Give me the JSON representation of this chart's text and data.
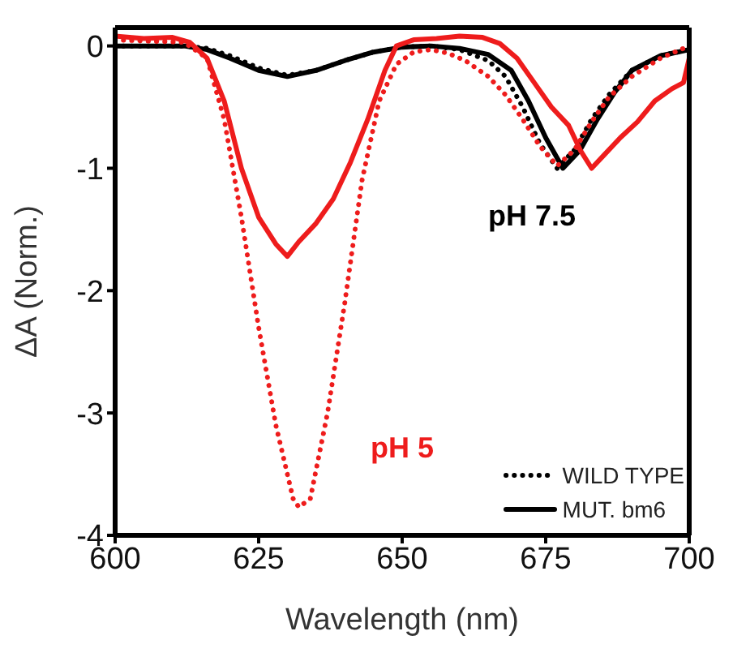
{
  "chart_data": {
    "type": "line",
    "xlabel": "Wavelength (nm)",
    "ylabel": "ΔA (Norm.)",
    "xlim": [
      600,
      700
    ],
    "xticks": [
      600,
      625,
      650,
      675,
      700
    ],
    "ylim": [
      -4,
      0.15
    ],
    "yticks": [
      -4,
      -3,
      -2,
      -1,
      0
    ],
    "legend": "bottom right",
    "marker": "none",
    "annotations": [
      "pH 7.5",
      "pH 5"
    ],
    "series": [
      {
        "name": "WILD TYPE",
        "color": "#000000",
        "line_style": "dotted",
        "x": [
          600,
          612,
          616,
          620,
          625,
          630,
          635,
          640,
          645,
          650,
          655,
          660,
          665,
          668,
          671,
          674,
          677,
          680,
          683,
          686,
          690,
          695,
          700
        ],
        "values": [
          0,
          0,
          -0.02,
          -0.08,
          -0.18,
          -0.24,
          -0.2,
          -0.12,
          -0.05,
          -0.01,
          0,
          -0.03,
          -0.12,
          -0.25,
          -0.5,
          -0.8,
          -1.0,
          -0.85,
          -0.6,
          -0.4,
          -0.2,
          -0.08,
          -0.03
        ]
      },
      {
        "name": "MUT. bm6",
        "color": "#000000",
        "line_style": "solid",
        "x": [
          600,
          612,
          616,
          620,
          625,
          630,
          635,
          640,
          645,
          650,
          655,
          660,
          665,
          669,
          672,
          675,
          678,
          681,
          684,
          687,
          690,
          695,
          700
        ],
        "values": [
          0,
          0,
          -0.03,
          -0.1,
          -0.2,
          -0.25,
          -0.2,
          -0.12,
          -0.05,
          -0.01,
          0,
          -0.02,
          -0.07,
          -0.2,
          -0.45,
          -0.75,
          -1.0,
          -0.85,
          -0.6,
          -0.38,
          -0.2,
          -0.08,
          -0.03
        ]
      },
      {
        "color": "#ee1c1c",
        "line_style": "dotted",
        "x": [
          600,
          612,
          616,
          619,
          622,
          625,
          628,
          631,
          632,
          634,
          637,
          640,
          643,
          646,
          649,
          652,
          655,
          658,
          661,
          665,
          668,
          671,
          674,
          677,
          680,
          683,
          686,
          690,
          695,
          700
        ],
        "values": [
          0.05,
          0.03,
          -0.1,
          -0.6,
          -1.4,
          -2.3,
          -3.1,
          -3.7,
          -3.77,
          -3.7,
          -3.0,
          -2.1,
          -1.1,
          -0.45,
          -0.15,
          -0.05,
          -0.03,
          -0.06,
          -0.12,
          -0.25,
          -0.4,
          -0.6,
          -0.82,
          -0.98,
          -0.85,
          -0.62,
          -0.42,
          -0.25,
          -0.1,
          0
        ]
      },
      {
        "color": "#ee1c1c",
        "line_style": "solid",
        "x": [
          600,
          605,
          610,
          613,
          616,
          619,
          622,
          625,
          628,
          630,
          632,
          635,
          638,
          641,
          644,
          647,
          649,
          652,
          656,
          660,
          664,
          667,
          670,
          673,
          676,
          679,
          681,
          683,
          685,
          688,
          691,
          694,
          697,
          699,
          700
        ],
        "values": [
          0.08,
          0.06,
          0.07,
          0.03,
          -0.1,
          -0.45,
          -1.0,
          -1.4,
          -1.62,
          -1.72,
          -1.6,
          -1.45,
          -1.25,
          -0.95,
          -0.6,
          -0.2,
          0,
          0.05,
          0.06,
          0.08,
          0.07,
          0.02,
          -0.1,
          -0.3,
          -0.5,
          -0.65,
          -0.85,
          -1.0,
          -0.9,
          -0.75,
          -0.62,
          -0.45,
          -0.35,
          -0.3,
          -0.1
        ]
      }
    ]
  }
}
